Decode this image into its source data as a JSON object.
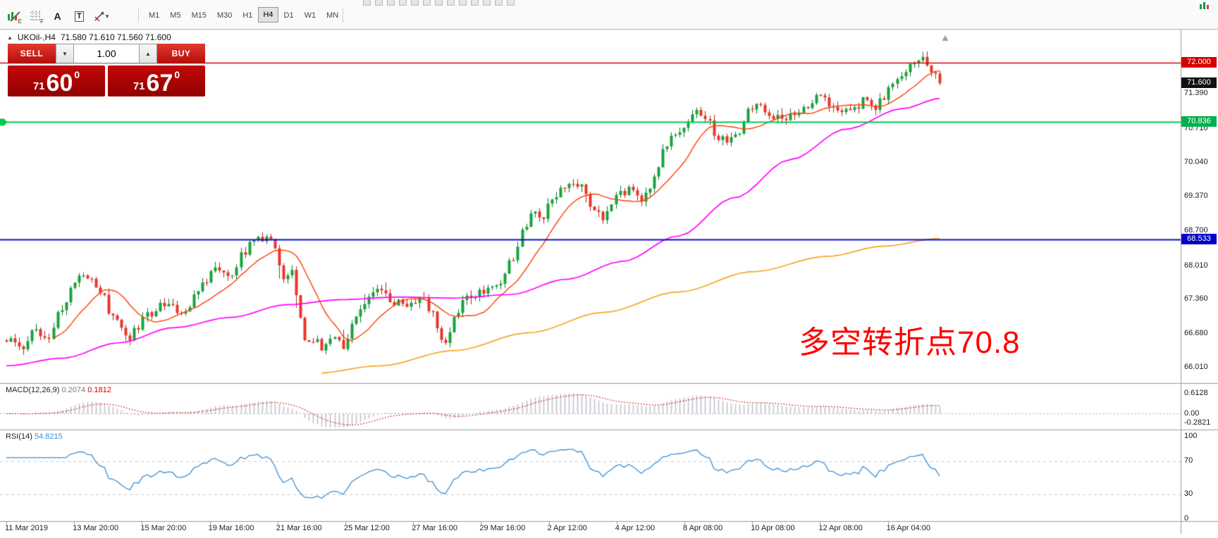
{
  "toolbar": {
    "icons": [
      {
        "name": "chart-edit-icon",
        "sub": "E"
      },
      {
        "name": "grid-icon",
        "sub": "F"
      },
      {
        "name": "text-tool-icon",
        "glyph": "A"
      },
      {
        "name": "textbox-tool-icon",
        "glyph": "T"
      },
      {
        "name": "shapes-tool-icon",
        "caret": "▾"
      }
    ],
    "timeframes": [
      "M1",
      "M5",
      "M15",
      "M30",
      "H1",
      "H4",
      "D1",
      "W1",
      "MN"
    ],
    "active_timeframe": "H4"
  },
  "header": {
    "collapse_arrow": "▲",
    "symbol": "UKOil-,H4",
    "ohlc": "71.580 71.610 71.560 71.600"
  },
  "trade_panel": {
    "sell_label": "SELL",
    "buy_label": "BUY",
    "volume": "1.00",
    "volume_down": "▼",
    "volume_up": "▲",
    "sell_price": {
      "main": "71",
      "big": "60",
      "sup": "0"
    },
    "buy_price": {
      "main": "71",
      "big": "67",
      "sup": "0"
    }
  },
  "annotation": {
    "text": "多空转折点70.8",
    "color": "#ff0000"
  },
  "price_scale": {
    "ticks": [
      "71.390",
      "70.710",
      "70.040",
      "69.370",
      "68.700",
      "68.010",
      "67.360",
      "66.680",
      "66.010"
    ],
    "tags": [
      {
        "label": "72.000",
        "price": 72.0,
        "bg": "#d40000"
      },
      {
        "label": "71.600",
        "price": 71.6,
        "bg": "#111111"
      },
      {
        "label": "70.836",
        "price": 70.836,
        "bg": "#00b14f"
      },
      {
        "label": "68.533",
        "price": 68.533,
        "bg": "#0000c8"
      }
    ]
  },
  "macd_panel": {
    "label": "MACD(12,26,9)",
    "value1": "0.2074",
    "value2": "0.1812",
    "scale": [
      {
        "label": "0.6128",
        "v": 0.6128
      },
      {
        "label": "0.00",
        "v": 0
      },
      {
        "label": "-0.2821",
        "v": -0.2821
      }
    ]
  },
  "rsi_panel": {
    "label": "RSI(14)",
    "value": "54.8215",
    "scale": [
      {
        "label": "100",
        "v": 100
      },
      {
        "label": "70",
        "v": 70
      },
      {
        "label": "30",
        "v": 30
      },
      {
        "label": "0",
        "v": 0
      }
    ],
    "levels": [
      70,
      30
    ]
  },
  "time_axis": {
    "labels": [
      "11 Mar 2019",
      "13 Mar 20:00",
      "15 Mar 20:00",
      "19 Mar 16:00",
      "21 Mar 16:00",
      "25 Mar 12:00",
      "27 Mar 16:00",
      "29 Mar 16:00",
      "2 Apr 12:00",
      "4 Apr 12:00",
      "8 Apr 08:00",
      "10 Apr 08:00",
      "12 Apr 08:00",
      "16 Apr 04:00"
    ]
  },
  "chart_data": {
    "type": "candlestick",
    "symbol": "UKOil-",
    "timeframe": "H4",
    "visible_price_range": [
      65.74,
      72.38
    ],
    "candle_count": 220,
    "current_bid": 71.6,
    "hlines": [
      {
        "price": 72.0,
        "color": "#d40000",
        "w": 1.5
      },
      {
        "price": 70.836,
        "color": "#00c853",
        "w": 2.2
      },
      {
        "price": 68.533,
        "color": "#0b0bd0",
        "w": 2.2
      }
    ],
    "up_color": "#18a33c",
    "up_border": "#0f7a2b",
    "down_color": "#e8362a",
    "down_border": "#b3211a",
    "ma_fast_period": 12,
    "ma_fast_color": "#ff3c00",
    "ma_mid_color": "#ff00ff",
    "ma_slow_color": "#f5a623",
    "macd_colors": {
      "hist": "#bfc3cb",
      "signal": "#cc0000"
    },
    "rsi_colors": {
      "line": "#3b8fd4",
      "level": "#c9c9c9"
    },
    "price_path": [
      [
        0.0,
        66.55
      ],
      [
        0.015,
        66.4
      ],
      [
        0.03,
        66.7
      ],
      [
        0.045,
        66.6
      ],
      [
        0.06,
        67.2
      ],
      [
        0.075,
        67.75
      ],
      [
        0.09,
        67.85
      ],
      [
        0.1,
        67.5
      ],
      [
        0.115,
        67.0
      ],
      [
        0.13,
        66.6
      ],
      [
        0.14,
        66.75
      ],
      [
        0.15,
        67.05
      ],
      [
        0.17,
        67.3
      ],
      [
        0.19,
        67.1
      ],
      [
        0.205,
        67.55
      ],
      [
        0.225,
        68.0
      ],
      [
        0.24,
        67.85
      ],
      [
        0.255,
        68.3
      ],
      [
        0.265,
        68.5
      ],
      [
        0.28,
        68.55
      ],
      [
        0.29,
        68.3
      ],
      [
        0.295,
        67.75
      ],
      [
        0.305,
        67.95
      ],
      [
        0.315,
        67.0
      ],
      [
        0.322,
        66.45
      ],
      [
        0.33,
        66.6
      ],
      [
        0.34,
        66.35
      ],
      [
        0.35,
        66.7
      ],
      [
        0.36,
        66.45
      ],
      [
        0.375,
        67.1
      ],
      [
        0.385,
        67.35
      ],
      [
        0.4,
        67.55
      ],
      [
        0.415,
        67.3
      ],
      [
        0.43,
        67.2
      ],
      [
        0.445,
        67.45
      ],
      [
        0.455,
        67.1
      ],
      [
        0.462,
        66.85
      ],
      [
        0.468,
        66.4
      ],
      [
        0.48,
        66.95
      ],
      [
        0.49,
        67.35
      ],
      [
        0.51,
        67.5
      ],
      [
        0.525,
        67.6
      ],
      [
        0.54,
        68.1
      ],
      [
        0.555,
        68.7
      ],
      [
        0.565,
        69.1
      ],
      [
        0.575,
        69.0
      ],
      [
        0.585,
        69.35
      ],
      [
        0.6,
        69.55
      ],
      [
        0.615,
        69.65
      ],
      [
        0.63,
        69.1
      ],
      [
        0.64,
        68.95
      ],
      [
        0.655,
        69.4
      ],
      [
        0.67,
        69.55
      ],
      [
        0.68,
        69.35
      ],
      [
        0.695,
        69.7
      ],
      [
        0.705,
        70.3
      ],
      [
        0.715,
        70.6
      ],
      [
        0.725,
        70.75
      ],
      [
        0.74,
        71.0
      ],
      [
        0.75,
        70.9
      ],
      [
        0.762,
        70.55
      ],
      [
        0.775,
        70.5
      ],
      [
        0.785,
        70.65
      ],
      [
        0.795,
        71.05
      ],
      [
        0.805,
        71.25
      ],
      [
        0.815,
        71.0
      ],
      [
        0.83,
        70.9
      ],
      [
        0.84,
        70.95
      ],
      [
        0.855,
        71.15
      ],
      [
        0.865,
        71.3
      ],
      [
        0.875,
        71.35
      ],
      [
        0.885,
        71.1
      ],
      [
        0.9,
        71.05
      ],
      [
        0.91,
        71.1
      ],
      [
        0.92,
        71.3
      ],
      [
        0.93,
        71.1
      ],
      [
        0.94,
        71.35
      ],
      [
        0.95,
        71.55
      ],
      [
        0.96,
        71.75
      ],
      [
        0.972,
        72.0
      ],
      [
        0.982,
        72.05
      ],
      [
        0.99,
        71.85
      ],
      [
        1.0,
        71.62
      ]
    ],
    "ma_mid_path": [
      [
        0.0,
        66.05
      ],
      [
        0.06,
        66.2
      ],
      [
        0.12,
        66.5
      ],
      [
        0.18,
        66.8
      ],
      [
        0.24,
        67.0
      ],
      [
        0.3,
        67.25
      ],
      [
        0.36,
        67.35
      ],
      [
        0.42,
        67.4
      ],
      [
        0.48,
        67.38
      ],
      [
        0.54,
        67.45
      ],
      [
        0.6,
        67.75
      ],
      [
        0.66,
        68.1
      ],
      [
        0.72,
        68.6
      ],
      [
        0.78,
        69.35
      ],
      [
        0.84,
        70.1
      ],
      [
        0.9,
        70.7
      ],
      [
        0.96,
        71.1
      ],
      [
        1.0,
        71.3
      ]
    ],
    "ma_slow_path": [
      [
        0.33,
        65.9
      ],
      [
        0.4,
        66.05
      ],
      [
        0.48,
        66.35
      ],
      [
        0.56,
        66.7
      ],
      [
        0.64,
        67.1
      ],
      [
        0.72,
        67.5
      ],
      [
        0.8,
        67.9
      ],
      [
        0.88,
        68.2
      ],
      [
        0.94,
        68.4
      ],
      [
        1.0,
        68.55
      ]
    ]
  }
}
